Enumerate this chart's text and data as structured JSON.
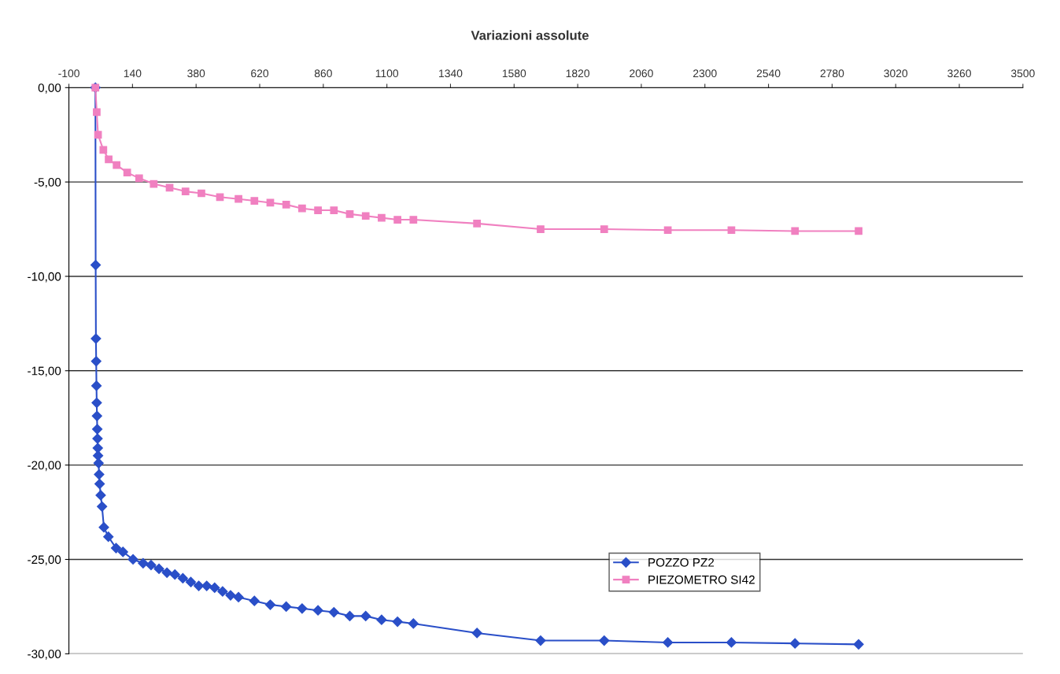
{
  "chart_data": {
    "type": "line",
    "title": "Variazioni assolute",
    "xlim": [
      -100,
      3500
    ],
    "xticks": [
      -100,
      140,
      380,
      620,
      860,
      1100,
      1340,
      1580,
      1820,
      2060,
      2300,
      2540,
      2780,
      3020,
      3260,
      3500
    ],
    "ylim": [
      -30,
      0
    ],
    "yticks": [
      {
        "value": 0,
        "label": "0,00"
      },
      {
        "value": -5,
        "label": "-5,00"
      },
      {
        "value": -10,
        "label": "-10,00"
      },
      {
        "value": -15,
        "label": "-15,00"
      },
      {
        "value": -20,
        "label": "-20,00"
      },
      {
        "value": -25,
        "label": "-25,00"
      },
      {
        "value": -30,
        "label": "-30,00"
      }
    ],
    "grid": "y",
    "legend": "bottom right",
    "series": [
      {
        "name": "POZZO PZ2",
        "color": "#2a4fc8",
        "marker": "diamond",
        "x": [
          0,
          1,
          2,
          3,
          4,
          5,
          6,
          7,
          8,
          9,
          10,
          12,
          14,
          16,
          20,
          25,
          32,
          49,
          78,
          104,
          142,
          180,
          210,
          240,
          270,
          300,
          330,
          360,
          390,
          420,
          450,
          480,
          510,
          540,
          600,
          660,
          720,
          780,
          840,
          900,
          960,
          1020,
          1080,
          1140,
          1200,
          1440,
          1680,
          1920,
          2160,
          2400,
          2640,
          2880
        ],
        "values": [
          0,
          -9.4,
          -13.3,
          -14.5,
          -15.8,
          -16.7,
          -17.4,
          -18.1,
          -18.6,
          -19.1,
          -19.5,
          -19.9,
          -20.5,
          -21.0,
          -21.6,
          -22.2,
          -23.3,
          -23.8,
          -24.4,
          -24.6,
          -25.0,
          -25.2,
          -25.3,
          -25.5,
          -25.7,
          -25.8,
          -26.0,
          -26.2,
          -26.4,
          -26.4,
          -26.5,
          -26.7,
          -26.9,
          -27.0,
          -27.2,
          -27.4,
          -27.5,
          -27.6,
          -27.7,
          -27.8,
          -28.0,
          -28.0,
          -28.2,
          -28.3,
          -28.4,
          -28.9,
          -29.3,
          -29.3,
          -29.4,
          -29.4,
          -29.45,
          -29.5
        ]
      },
      {
        "name": "PIEZOMETRO SI42",
        "color": "#f080c0",
        "marker": "square",
        "x": [
          0,
          5,
          10,
          30,
          50,
          80,
          120,
          165,
          220,
          280,
          340,
          400,
          470,
          540,
          600,
          660,
          720,
          780,
          840,
          900,
          960,
          1020,
          1080,
          1140,
          1200,
          1440,
          1680,
          1920,
          2160,
          2400,
          2640,
          2880
        ],
        "values": [
          0,
          -1.3,
          -2.5,
          -3.3,
          -3.8,
          -4.1,
          -4.5,
          -4.8,
          -5.1,
          -5.3,
          -5.5,
          -5.6,
          -5.8,
          -5.9,
          -6.0,
          -6.1,
          -6.2,
          -6.4,
          -6.5,
          -6.5,
          -6.7,
          -6.8,
          -6.9,
          -7.0,
          -7.0,
          -7.2,
          -7.5,
          -7.5,
          -7.55,
          -7.55,
          -7.6,
          -7.6
        ]
      }
    ]
  }
}
